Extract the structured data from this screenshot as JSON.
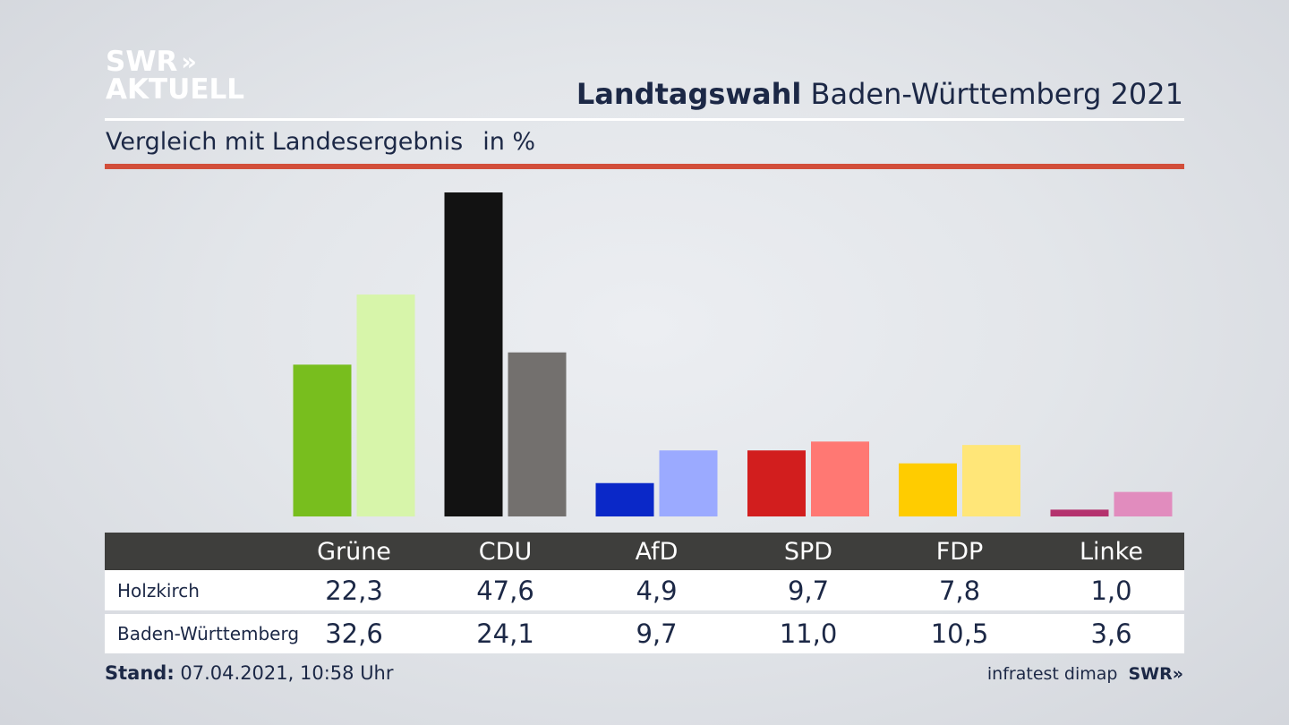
{
  "brand": {
    "line1": "SWR",
    "line2": "AKTUELL",
    "chevrons": "»"
  },
  "header": {
    "title_bold": "Landtagswahl",
    "title_rest": "Baden-Württemberg 2021",
    "subtitle": "Vergleich mit Landesergebnis",
    "unit": "in %"
  },
  "colors": {
    "accent_red": "#d24e3a",
    "table_header": "#3e3e3c"
  },
  "chart_data": {
    "type": "bar",
    "categories": [
      "Grüne",
      "CDU",
      "AfD",
      "SPD",
      "FDP",
      "Linke"
    ],
    "series": [
      {
        "name": "Holzkirch",
        "values": [
          22.3,
          47.6,
          4.9,
          9.7,
          7.8,
          1.0
        ],
        "labels": [
          "22,3",
          "47,6",
          "4,9",
          "9,7",
          "7,8",
          "1,0"
        ],
        "colors": [
          "#78be1e",
          "#121212",
          "#0a28c8",
          "#d21e1e",
          "#ffcc00",
          "#b4326e"
        ]
      },
      {
        "name": "Baden-Württemberg",
        "values": [
          32.6,
          24.1,
          9.7,
          11.0,
          10.5,
          3.6
        ],
        "labels": [
          "32,6",
          "24,1",
          "9,7",
          "11,0",
          "10,5",
          "3,6"
        ],
        "colors": [
          "#d7f5aa",
          "#73706e",
          "#9baaff",
          "#ff7873",
          "#ffe678",
          "#e18cbe"
        ]
      }
    ],
    "ylim": [
      0,
      47.6
    ],
    "grid": false,
    "legend": "table-below"
  },
  "footer": {
    "stand_label": "Stand:",
    "stand_value": "07.04.2021, 10:58 Uhr",
    "source": "infratest dimap",
    "source_brand": "SWR»"
  }
}
